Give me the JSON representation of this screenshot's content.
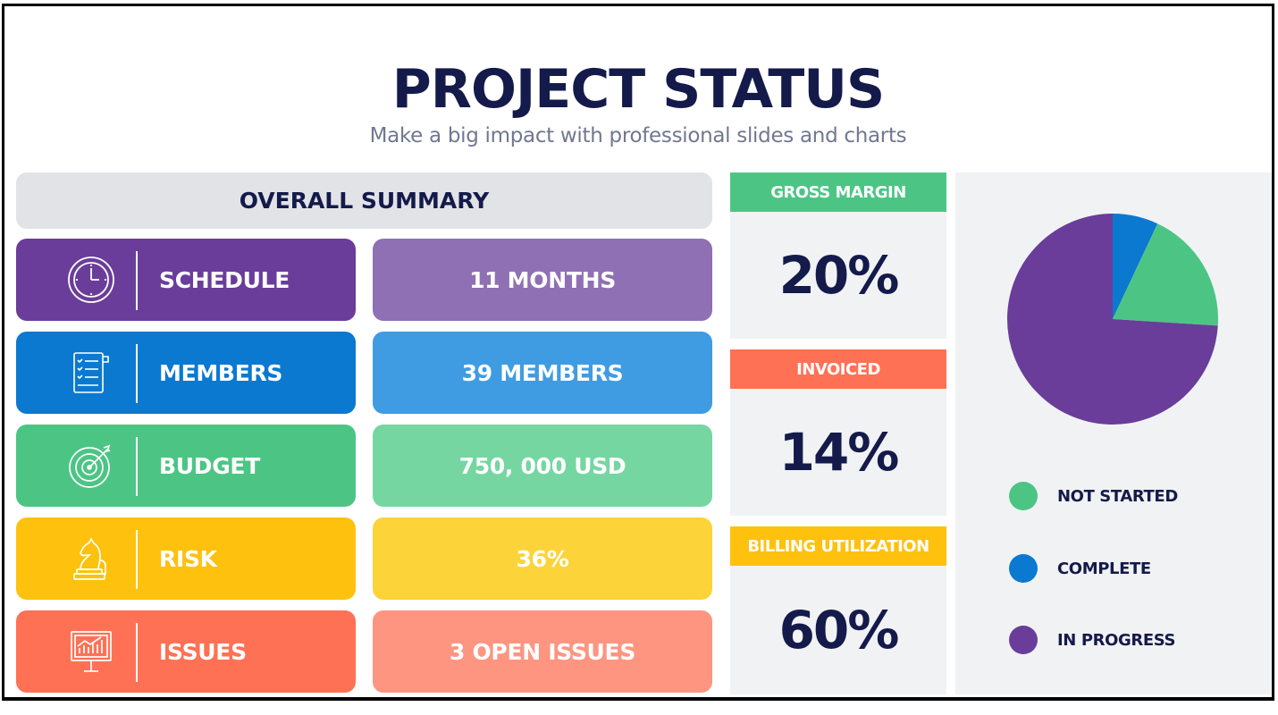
{
  "header": {
    "title": "PROJECT STATUS",
    "subtitle": "Make a big impact with professional slides and charts"
  },
  "summary": {
    "heading": "OVERALL SUMMARY",
    "rows": [
      {
        "label": "SCHEDULE",
        "value": "11 MONTHS",
        "icon": "clock-icon",
        "label_color": "#6a3d9a",
        "value_color": "#9070b4"
      },
      {
        "label": "MEMBERS",
        "value": "39 MEMBERS",
        "icon": "checklist-scroll-icon",
        "label_color": "#0b79d0",
        "value_color": "#3f9ce2"
      },
      {
        "label": "BUDGET",
        "value": "750, 000 USD",
        "icon": "target-icon",
        "label_color": "#4cc584",
        "value_color": "#76d6a2"
      },
      {
        "label": "RISK",
        "value": "36%",
        "icon": "chess-knight-icon",
        "label_color": "#fec10e",
        "value_color": "#fcd43a"
      },
      {
        "label": "ISSUES",
        "value": "3 OPEN ISSUES",
        "icon": "presentation-chart-icon",
        "label_color": "#ff7154",
        "value_color": "#fd9580"
      }
    ]
  },
  "metrics": [
    {
      "label": "GROSS MARGIN",
      "value": "20%",
      "color": "#4cc584"
    },
    {
      "label": "INVOICED",
      "value": "14%",
      "color": "#ff7154"
    },
    {
      "label": "BILLING UTILIZATION",
      "value": "60%",
      "color": "#fec10e"
    }
  ],
  "chart_data": {
    "type": "pie",
    "title": "",
    "slices": [
      {
        "name": "NOT STARTED",
        "value": 19,
        "color": "#4cc584"
      },
      {
        "name": "COMPLETE",
        "value": 7,
        "color": "#0b79d0"
      },
      {
        "name": "IN PROGRESS",
        "value": 74,
        "color": "#6a3d9a"
      }
    ],
    "start": "12 o'clock, clockwise, complete first",
    "legend": "below"
  }
}
